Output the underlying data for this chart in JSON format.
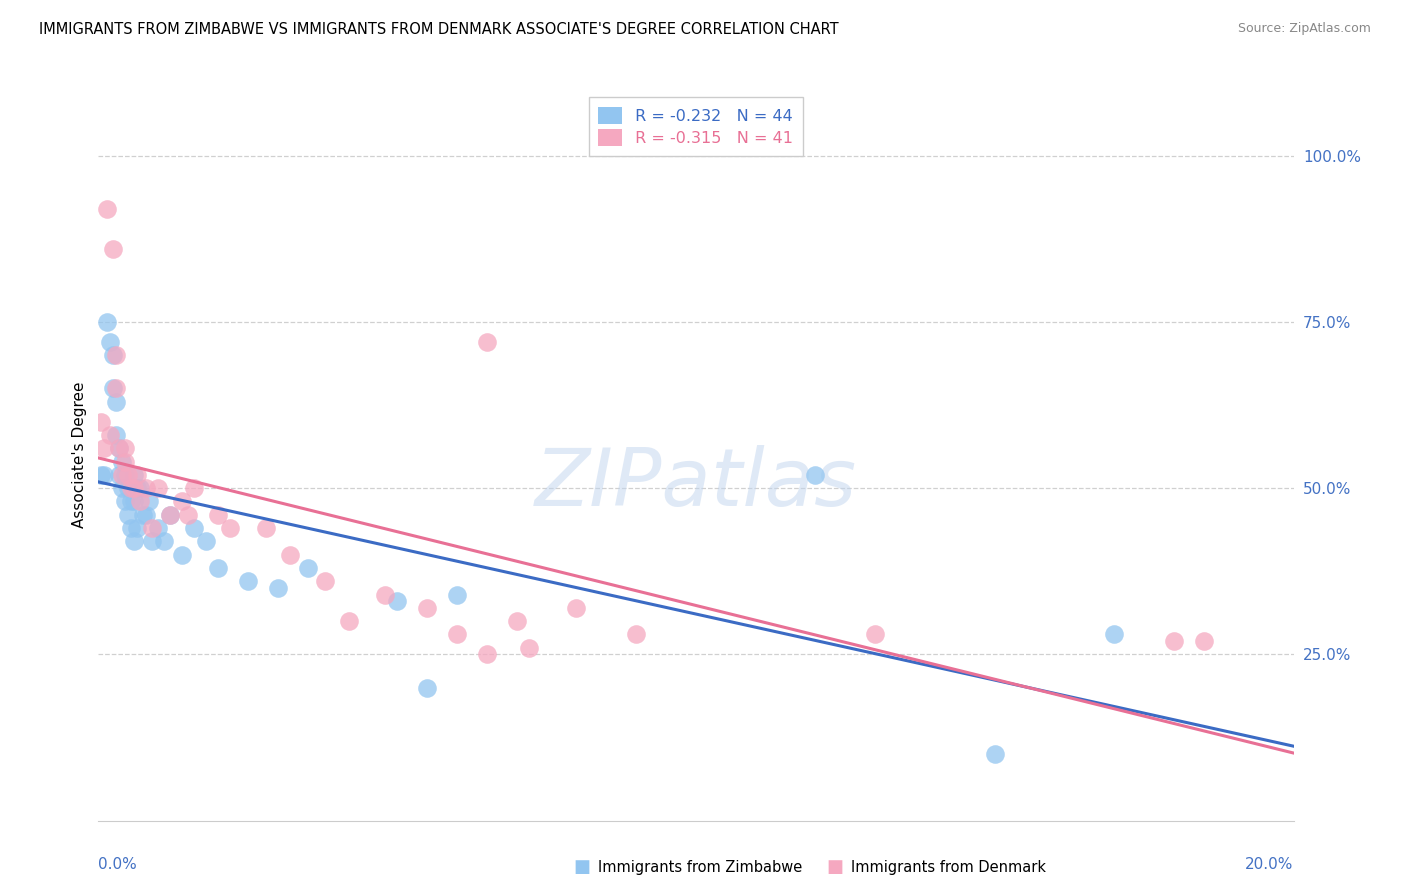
{
  "title": "IMMIGRANTS FROM ZIMBABWE VS IMMIGRANTS FROM DENMARK ASSOCIATE'S DEGREE CORRELATION CHART",
  "source": "Source: ZipAtlas.com",
  "ylabel": "Associate's Degree",
  "xlim": [
    0.0,
    0.2
  ],
  "ylim": [
    0.0,
    1.05
  ],
  "yticks": [
    0.25,
    0.5,
    0.75,
    1.0
  ],
  "ytick_labels": [
    "25.0%",
    "50.0%",
    "75.0%",
    "100.0%"
  ],
  "xtick_left_label": "0.0%",
  "xtick_right_label": "20.0%",
  "legend_r1": "R = -0.232",
  "legend_n1": "N = 44",
  "legend_r2": "R = -0.315",
  "legend_n2": "N = 41",
  "color_blue": "#92C5F0",
  "color_pink": "#F5A8C0",
  "color_blue_line": "#3B6BC4",
  "color_pink_line": "#E87095",
  "color_axis": "#4472C4",
  "watermark_text": "ZIPatlas",
  "bottom_label1": "Immigrants from Zimbabwe",
  "bottom_label2": "Immigrants from Denmark",
  "zimbabwe_x": [
    0.0005,
    0.001,
    0.0015,
    0.002,
    0.0025,
    0.0025,
    0.003,
    0.003,
    0.0035,
    0.0035,
    0.004,
    0.004,
    0.0045,
    0.0045,
    0.005,
    0.005,
    0.0055,
    0.0055,
    0.006,
    0.006,
    0.006,
    0.0065,
    0.0065,
    0.007,
    0.0075,
    0.008,
    0.0085,
    0.009,
    0.01,
    0.011,
    0.012,
    0.014,
    0.016,
    0.018,
    0.02,
    0.025,
    0.03,
    0.035,
    0.05,
    0.055,
    0.06,
    0.12,
    0.15,
    0.17
  ],
  "zimbabwe_y": [
    0.52,
    0.52,
    0.75,
    0.72,
    0.7,
    0.65,
    0.63,
    0.58,
    0.56,
    0.52,
    0.5,
    0.54,
    0.48,
    0.52,
    0.46,
    0.5,
    0.44,
    0.48,
    0.52,
    0.48,
    0.42,
    0.44,
    0.5,
    0.5,
    0.46,
    0.46,
    0.48,
    0.42,
    0.44,
    0.42,
    0.46,
    0.4,
    0.44,
    0.42,
    0.38,
    0.36,
    0.35,
    0.38,
    0.33,
    0.2,
    0.34,
    0.52,
    0.1,
    0.28
  ],
  "denmark_x": [
    0.0005,
    0.001,
    0.0015,
    0.002,
    0.0025,
    0.003,
    0.003,
    0.0035,
    0.004,
    0.0045,
    0.0045,
    0.005,
    0.0055,
    0.006,
    0.0065,
    0.007,
    0.008,
    0.009,
    0.01,
    0.012,
    0.014,
    0.015,
    0.016,
    0.02,
    0.022,
    0.028,
    0.032,
    0.038,
    0.042,
    0.048,
    0.055,
    0.06,
    0.065,
    0.065,
    0.07,
    0.072,
    0.08,
    0.09,
    0.13,
    0.18,
    0.185
  ],
  "denmark_y": [
    0.6,
    0.56,
    0.92,
    0.58,
    0.86,
    0.7,
    0.65,
    0.56,
    0.52,
    0.56,
    0.54,
    0.52,
    0.5,
    0.5,
    0.52,
    0.48,
    0.5,
    0.44,
    0.5,
    0.46,
    0.48,
    0.46,
    0.5,
    0.46,
    0.44,
    0.44,
    0.4,
    0.36,
    0.3,
    0.34,
    0.32,
    0.28,
    0.25,
    0.72,
    0.3,
    0.26,
    0.32,
    0.28,
    0.28,
    0.27,
    0.27
  ]
}
